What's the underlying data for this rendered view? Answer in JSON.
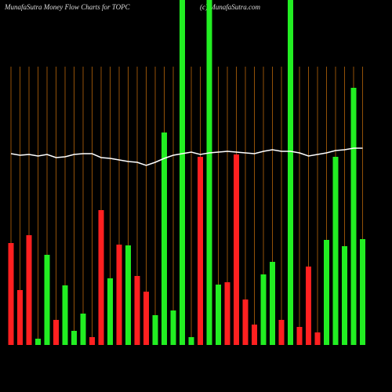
{
  "chart_data": {
    "type": "bar",
    "title": "MunafaSutra  Money Flow  Charts for TOPC",
    "subtitle": "(c) MunafaSutra.com",
    "categories": [
      null,
      null,
      null,
      null,
      null,
      null,
      null,
      null,
      null,
      null,
      null,
      null,
      null,
      null,
      null,
      null,
      null,
      null,
      null,
      null,
      null,
      null,
      null,
      null,
      null,
      null,
      null,
      null,
      null,
      null,
      null,
      null,
      null,
      null,
      null,
      null,
      null,
      null,
      null,
      null
    ],
    "values": [
      130,
      70,
      140,
      8,
      115,
      32,
      76,
      18,
      40,
      10,
      172,
      85,
      128,
      127,
      88,
      68,
      38,
      271,
      44,
      440,
      10,
      240,
      440,
      77,
      80,
      243,
      58,
      26,
      90,
      106,
      32,
      440,
      23,
      100,
      16,
      134,
      240,
      126,
      328,
      135
    ],
    "colors": [
      "#ff2020",
      "#ff2020",
      "#ff2020",
      "#22ee22",
      "#22ee22",
      "#ff2020",
      "#22ee22",
      "#22ee22",
      "#22ee22",
      "#ff2020",
      "#ff2020",
      "#22ee22",
      "#ff2020",
      "#22ee22",
      "#ff2020",
      "#ff2020",
      "#22ee22",
      "#22ee22",
      "#22ee22",
      "#22ee22",
      "#22ee22",
      "#ff2020",
      "#22ee22",
      "#22ee22",
      "#ff2020",
      "#ff2020",
      "#ff2020",
      "#ff2020",
      "#22ee22",
      "#22ee22",
      "#ff2020",
      "#22ee22",
      "#ff2020",
      "#ff2020",
      "#ff2020",
      "#22ee22",
      "#22ee22",
      "#22ee22",
      "#22ee22",
      "#22ee22"
    ],
    "line": {
      "color": "#ffffff",
      "values": [
        244,
        242,
        243,
        241,
        243,
        239,
        240,
        243,
        244,
        244,
        239,
        238,
        236,
        234,
        233,
        229,
        233,
        238,
        242,
        244,
        246,
        243,
        245,
        246,
        247,
        246,
        245,
        244,
        247,
        249,
        247,
        247,
        245,
        241,
        243,
        245,
        248,
        249,
        251,
        251
      ]
    },
    "gridline_color": "#b8660b",
    "ylim": [
      0,
      440
    ]
  }
}
